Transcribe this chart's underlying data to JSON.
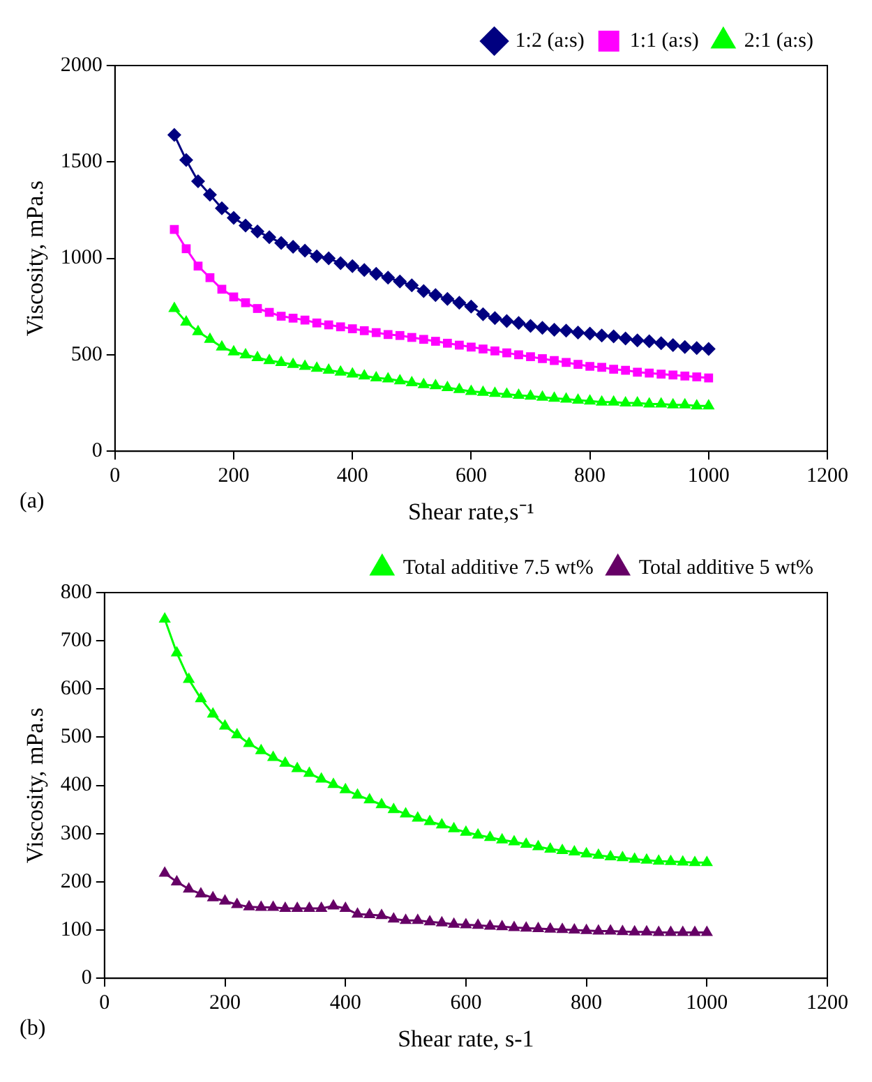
{
  "chart_data": [
    {
      "type": "line",
      "xlabel": "Shear rate,s⁻¹",
      "ylabel": "Viscosity, mPa.s",
      "annotations": [
        "(a)"
      ],
      "legend": "top right",
      "grid": false,
      "xlim": [
        0,
        1200
      ],
      "xticks": [
        0,
        200,
        400,
        600,
        800,
        1000,
        1200
      ],
      "ylim": [
        0,
        2000
      ],
      "yticks": [
        0,
        500,
        1000,
        1500,
        2000
      ],
      "x": [
        100,
        120,
        140,
        160,
        180,
        200,
        220,
        240,
        260,
        280,
        300,
        320,
        340,
        360,
        380,
        400,
        420,
        440,
        460,
        480,
        500,
        520,
        540,
        560,
        580,
        600,
        620,
        640,
        660,
        680,
        700,
        720,
        740,
        760,
        780,
        800,
        820,
        840,
        860,
        880,
        900,
        920,
        940,
        960,
        980,
        1000
      ],
      "series": [
        {
          "name": "1:2 (a:s)",
          "color": "#000080",
          "marker": "diamond",
          "values": [
            1640,
            1510,
            1400,
            1330,
            1260,
            1210,
            1170,
            1140,
            1110,
            1080,
            1060,
            1040,
            1010,
            1000,
            975,
            960,
            940,
            920,
            900,
            880,
            860,
            830,
            810,
            790,
            770,
            750,
            710,
            690,
            675,
            665,
            650,
            640,
            630,
            625,
            615,
            610,
            600,
            595,
            585,
            575,
            570,
            560,
            550,
            540,
            535,
            530
          ]
        },
        {
          "name": "1:1 (a:s)",
          "color": "#ff00ff",
          "marker": "square",
          "values": [
            1150,
            1050,
            960,
            900,
            840,
            800,
            770,
            740,
            720,
            700,
            690,
            680,
            665,
            655,
            645,
            635,
            625,
            615,
            605,
            600,
            590,
            580,
            570,
            560,
            550,
            540,
            530,
            520,
            510,
            500,
            490,
            480,
            470,
            460,
            450,
            440,
            435,
            425,
            420,
            410,
            405,
            400,
            395,
            390,
            385,
            380
          ]
        },
        {
          "name": "2:1 (a:s)",
          "color": "#00ff00",
          "marker": "triangle",
          "values": [
            740,
            670,
            620,
            580,
            540,
            515,
            500,
            485,
            470,
            460,
            450,
            440,
            430,
            420,
            410,
            400,
            390,
            380,
            375,
            365,
            355,
            345,
            340,
            330,
            320,
            310,
            305,
            300,
            295,
            290,
            285,
            280,
            275,
            270,
            265,
            260,
            255,
            255,
            250,
            250,
            245,
            245,
            240,
            240,
            235,
            235
          ]
        }
      ]
    },
    {
      "type": "line",
      "xlabel": "Shear rate, s-1",
      "ylabel": "Viscosity, mPa.s",
      "annotations": [
        "(b)"
      ],
      "legend": "top right",
      "grid": false,
      "xlim": [
        0,
        1200
      ],
      "xticks": [
        0,
        200,
        400,
        600,
        800,
        1000,
        1200
      ],
      "ylim": [
        0,
        800
      ],
      "yticks": [
        0,
        100,
        200,
        300,
        400,
        500,
        600,
        700,
        800
      ],
      "x": [
        100,
        120,
        140,
        160,
        180,
        200,
        220,
        240,
        260,
        280,
        300,
        320,
        340,
        360,
        380,
        400,
        420,
        440,
        460,
        480,
        500,
        520,
        540,
        560,
        580,
        600,
        620,
        640,
        660,
        680,
        700,
        720,
        740,
        760,
        780,
        800,
        820,
        840,
        860,
        880,
        900,
        920,
        940,
        960,
        980,
        1000
      ],
      "series": [
        {
          "name": "Total additive 7.5 wt%",
          "color": "#00ff00",
          "marker": "triangle",
          "values": [
            745,
            675,
            620,
            580,
            548,
            523,
            505,
            487,
            472,
            458,
            446,
            435,
            425,
            413,
            402,
            391,
            380,
            370,
            360,
            350,
            341,
            332,
            325,
            318,
            310,
            303,
            297,
            292,
            287,
            283,
            278,
            273,
            268,
            265,
            262,
            258,
            255,
            252,
            250,
            247,
            245,
            243,
            242,
            241,
            240,
            240
          ]
        },
        {
          "name": "Total additive 5 wt%",
          "color": "#660066",
          "marker": "triangle",
          "values": [
            218,
            200,
            185,
            175,
            167,
            160,
            153,
            148,
            147,
            147,
            145,
            145,
            145,
            145,
            150,
            145,
            133,
            132,
            130,
            123,
            120,
            120,
            117,
            115,
            112,
            111,
            110,
            108,
            107,
            105,
            104,
            103,
            102,
            101,
            100,
            99,
            98,
            98,
            97,
            96,
            96,
            95,
            95,
            95,
            95,
            95
          ]
        }
      ]
    }
  ]
}
